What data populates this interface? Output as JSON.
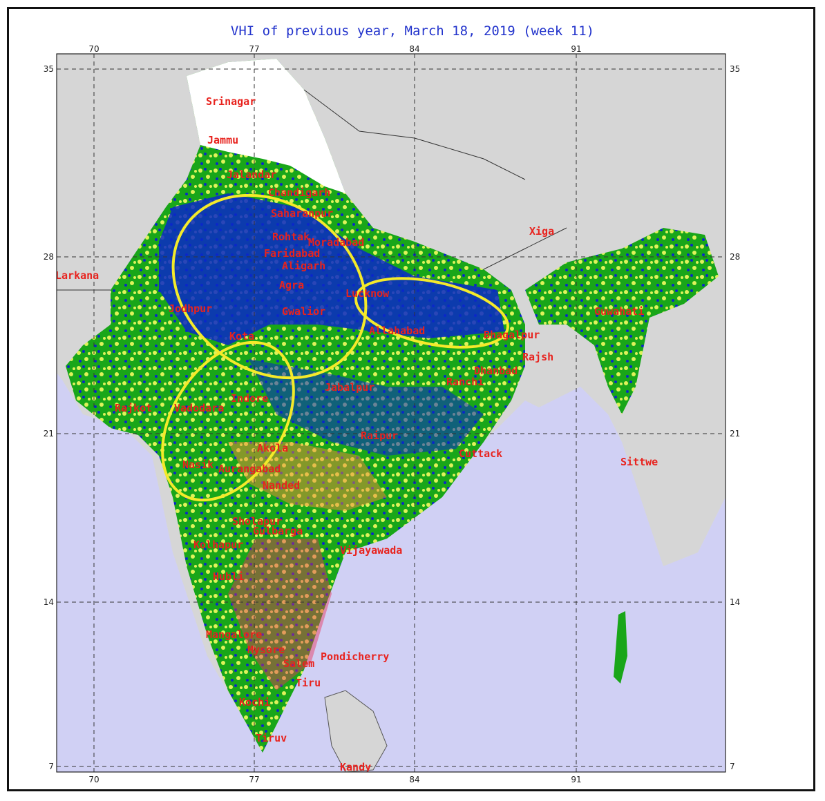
{
  "title": "VHI of previous year, March 18, 2019 (week 11)",
  "axes": {
    "longitudes": [
      "70",
      "77",
      "84",
      "91"
    ],
    "latitudes": [
      "35",
      "28",
      "21",
      "14",
      "7"
    ]
  },
  "colors": {
    "ocean": "#d0d0f4",
    "land_outside": "#d6d6d6",
    "vhi_high": "#0a28c8",
    "vhi_good": "#19a619",
    "vhi_fair": "#dff25a",
    "vhi_stress": "#f08a3a",
    "vhi_severe": "#e8305a",
    "snow": "#ffffff",
    "label": "#e8231e",
    "highlight_ellipse": "#f4ea2a"
  },
  "cities": [
    {
      "name": "Srinagar"
    },
    {
      "name": "Jammu"
    },
    {
      "name": "Jalandar"
    },
    {
      "name": "Chandigarh"
    },
    {
      "name": "Saharanpur"
    },
    {
      "name": "Rohtak"
    },
    {
      "name": "Moradabad"
    },
    {
      "name": "Faridabad"
    },
    {
      "name": "Aligarh"
    },
    {
      "name": "Agra"
    },
    {
      "name": "Gwalior"
    },
    {
      "name": "Lucknow"
    },
    {
      "name": "Allahabad"
    },
    {
      "name": "Bhagalpur"
    },
    {
      "name": "Rajsh"
    },
    {
      "name": "Dhanbad"
    },
    {
      "name": "Ranchi"
    },
    {
      "name": "Jabalpur"
    },
    {
      "name": "Jodhpur"
    },
    {
      "name": "Kota"
    },
    {
      "name": "Indore"
    },
    {
      "name": "Vadodara"
    },
    {
      "name": "Rajkot"
    },
    {
      "name": "Raipur"
    },
    {
      "name": "Cuttack"
    },
    {
      "name": "Akola"
    },
    {
      "name": "Nasik"
    },
    {
      "name": "Aurangabad"
    },
    {
      "name": "Nanded"
    },
    {
      "name": "Sholapur"
    },
    {
      "name": "Gulbarga"
    },
    {
      "name": "Kolhapur"
    },
    {
      "name": "Vijayawada"
    },
    {
      "name": "Hubli"
    },
    {
      "name": "Mangalore"
    },
    {
      "name": "Mysore"
    },
    {
      "name": "Salem"
    },
    {
      "name": "Pondicherry"
    },
    {
      "name": "Tiru"
    },
    {
      "name": "Kochi"
    },
    {
      "name": "Tiruv"
    },
    {
      "name": "Kandy"
    },
    {
      "name": "Xiga"
    },
    {
      "name": "Guwahati"
    },
    {
      "name": "Sittwe"
    },
    {
      "name": "Larkana"
    }
  ]
}
